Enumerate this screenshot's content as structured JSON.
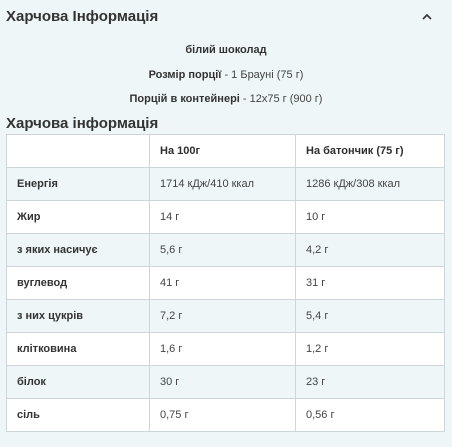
{
  "header": {
    "title": "Харчова Інформація",
    "chevron_icon": "chevron-up-icon"
  },
  "product": {
    "flavor": "білий шоколад",
    "serving_label": "Розмір порції",
    "serving_value": "- 1 Брауні (75 г)",
    "servings_label": "Порцій в контейнері",
    "servings_value": "- 12x75 г (900 г)"
  },
  "nutrition": {
    "section_title": "Харчова інформація",
    "columns": [
      "",
      "На 100г",
      "На батончик (75 г)"
    ],
    "rows": [
      {
        "name": "Енергія",
        "per100": "1714 кДж/410 ккал",
        "perbar": "1286 кДж/308 ккал"
      },
      {
        "name": "Жир",
        "per100": "14 г",
        "perbar": "10 г"
      },
      {
        "name": "з яких насичує",
        "per100": "5,6 г",
        "perbar": "4,2 г"
      },
      {
        "name": "вуглевод",
        "per100": "41 г",
        "perbar": "31 г"
      },
      {
        "name": "з них цукрів",
        "per100": "7,2 г",
        "perbar": "5,4 г"
      },
      {
        "name": "клітковина",
        "per100": "1,6 г",
        "perbar": "1,2 г"
      },
      {
        "name": "білок",
        "per100": "30 г",
        "perbar": "23 г"
      },
      {
        "name": "сіль",
        "per100": "0,75 г",
        "perbar": "0,56 г"
      }
    ]
  }
}
